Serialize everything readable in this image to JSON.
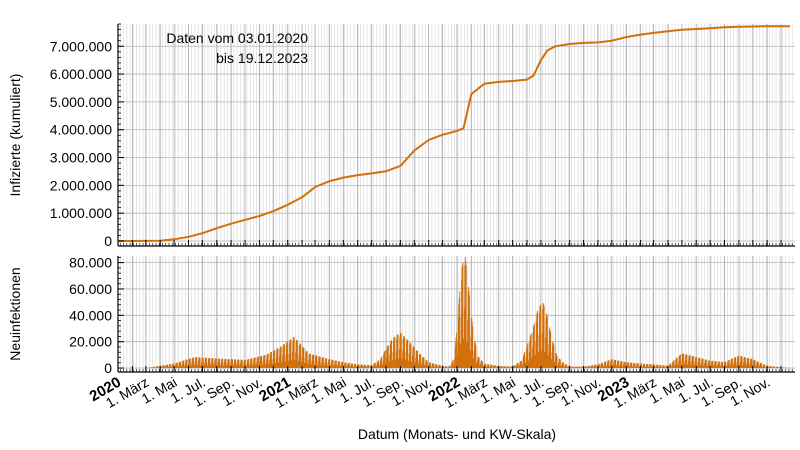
{
  "chart_data": [
    {
      "type": "line",
      "ylabel": "Infizierte (kumuliert)",
      "annotation_lines": [
        "Daten vom 03.01.2020",
        "bis 19.12.2023"
      ],
      "ylim": [
        -180000,
        7800000
      ],
      "yticks": [
        {
          "value": 0,
          "label": "0"
        },
        {
          "value": 1000000,
          "label": "1.000.000"
        },
        {
          "value": 2000000,
          "label": "2.000.000"
        },
        {
          "value": 3000000,
          "label": "3.000.000"
        },
        {
          "value": 4000000,
          "label": "4.000.000"
        },
        {
          "value": 5000000,
          "label": "5.000.000"
        },
        {
          "value": 6000000,
          "label": "6.000.000"
        },
        {
          "value": 7000000,
          "label": "7.000.000"
        }
      ],
      "grid": true,
      "series_color": "#d2700c",
      "x": [
        "2020-01-03",
        "2020-02-01",
        "2020-03-01",
        "2020-04-01",
        "2020-05-01",
        "2020-06-01",
        "2020-07-01",
        "2020-08-01",
        "2020-09-01",
        "2020-10-01",
        "2020-11-01",
        "2020-12-01",
        "2021-01-01",
        "2021-02-01",
        "2021-03-01",
        "2021-04-01",
        "2021-05-01",
        "2021-06-01",
        "2021-07-01",
        "2021-08-01",
        "2021-09-01",
        "2021-10-01",
        "2021-11-01",
        "2021-12-01",
        "2021-12-15",
        "2022-01-01",
        "2022-01-15",
        "2022-02-01",
        "2022-03-01",
        "2022-04-01",
        "2022-05-01",
        "2022-06-01",
        "2022-06-15",
        "2022-07-01",
        "2022-07-15",
        "2022-08-01",
        "2022-09-01",
        "2022-10-01",
        "2022-11-01",
        "2022-12-01",
        "2023-01-01",
        "2023-02-01",
        "2023-03-01",
        "2023-04-01",
        "2023-05-01",
        "2023-06-01",
        "2023-07-01",
        "2023-08-01",
        "2023-09-01",
        "2023-10-01",
        "2023-11-01",
        "2023-12-19"
      ],
      "values": [
        0,
        0,
        3000,
        10000,
        60000,
        150000,
        280000,
        460000,
        620000,
        760000,
        900000,
        1070000,
        1300000,
        1570000,
        1940000,
        2150000,
        2280000,
        2370000,
        2430000,
        2510000,
        2700000,
        3250000,
        3630000,
        3820000,
        3880000,
        3960000,
        4050000,
        5280000,
        5650000,
        5720000,
        5750000,
        5800000,
        5950000,
        6500000,
        6850000,
        7000000,
        7080000,
        7120000,
        7140000,
        7200000,
        7330000,
        7420000,
        7480000,
        7540000,
        7590000,
        7620000,
        7650000,
        7680000,
        7700000,
        7710000,
        7720000,
        7720000
      ]
    },
    {
      "type": "bar",
      "ylabel": "Neuinfektionen",
      "ylim": [
        -3000,
        85000
      ],
      "yticks": [
        {
          "value": 0,
          "label": "0"
        },
        {
          "value": 20000,
          "label": "20.000"
        },
        {
          "value": 40000,
          "label": "40.000"
        },
        {
          "value": 60000,
          "label": "60.000"
        },
        {
          "value": 80000,
          "label": "80.000"
        }
      ],
      "grid": true,
      "series_color": "#d2700c",
      "x": [
        "2020-01-03",
        "2020-03-01",
        "2020-05-01",
        "2020-06-15",
        "2020-08-01",
        "2020-10-01",
        "2020-11-15",
        "2020-12-15",
        "2021-01-01",
        "2021-01-15",
        "2021-02-15",
        "2021-04-01",
        "2021-05-01",
        "2021-06-01",
        "2021-07-01",
        "2021-07-20",
        "2021-08-01",
        "2021-08-15",
        "2021-09-01",
        "2021-09-20",
        "2021-10-15",
        "2021-11-01",
        "2021-12-01",
        "2021-12-15",
        "2021-12-25",
        "2022-01-02",
        "2022-01-10",
        "2022-01-18",
        "2022-01-26",
        "2022-02-05",
        "2022-02-15",
        "2022-03-01",
        "2022-04-01",
        "2022-05-01",
        "2022-05-20",
        "2022-06-01",
        "2022-06-15",
        "2022-06-25",
        "2022-07-05",
        "2022-07-15",
        "2022-07-25",
        "2022-08-05",
        "2022-08-20",
        "2022-09-05",
        "2022-10-01",
        "2022-11-01",
        "2022-12-01",
        "2023-01-01",
        "2023-02-01",
        "2023-03-01",
        "2023-04-01",
        "2023-05-01",
        "2023-06-01",
        "2023-07-01",
        "2023-08-01",
        "2023-09-01",
        "2023-10-01",
        "2023-11-01",
        "2023-12-19"
      ],
      "values": [
        0,
        0,
        3000,
        7500,
        6500,
        5500,
        9000,
        14000,
        18000,
        21000,
        10000,
        6000,
        4000,
        2500,
        2000,
        6000,
        13000,
        20000,
        24000,
        18000,
        9000,
        4000,
        1500,
        1000,
        6000,
        30000,
        65000,
        78000,
        55000,
        25000,
        8000,
        3000,
        1500,
        1000,
        5000,
        15000,
        28000,
        40000,
        45000,
        35000,
        20000,
        8000,
        3000,
        1000,
        1000,
        2500,
        6000,
        4000,
        3000,
        2500,
        1500,
        10000,
        7500,
        5000,
        4000,
        8500,
        6000,
        1500,
        0
      ]
    }
  ],
  "shared_x_axis": {
    "xlabel": "Datum (Monats- und KW-Skala)",
    "tick_labels": [
      {
        "date": "2020-01-01",
        "label": "2020",
        "bold": true
      },
      {
        "date": "2020-03-01",
        "label": "1. März",
        "bold": false
      },
      {
        "date": "2020-05-01",
        "label": "1. Mai",
        "bold": false
      },
      {
        "date": "2020-07-01",
        "label": "1. Jul.",
        "bold": false
      },
      {
        "date": "2020-09-01",
        "label": "1. Sep.",
        "bold": false
      },
      {
        "date": "2020-11-01",
        "label": "1. Nov.",
        "bold": false
      },
      {
        "date": "2021-01-01",
        "label": "2021",
        "bold": true
      },
      {
        "date": "2021-03-01",
        "label": "1. März",
        "bold": false
      },
      {
        "date": "2021-05-01",
        "label": "1. Mai",
        "bold": false
      },
      {
        "date": "2021-07-01",
        "label": "1. Jul.",
        "bold": false
      },
      {
        "date": "2021-09-01",
        "label": "1. Sep.",
        "bold": false
      },
      {
        "date": "2021-11-01",
        "label": "1. Nov.",
        "bold": false
      },
      {
        "date": "2022-01-01",
        "label": "2022",
        "bold": true
      },
      {
        "date": "2022-03-01",
        "label": "1. März",
        "bold": false
      },
      {
        "date": "2022-05-01",
        "label": "1. Mai",
        "bold": false
      },
      {
        "date": "2022-07-01",
        "label": "1. Jul.",
        "bold": false
      },
      {
        "date": "2022-09-01",
        "label": "1. Sep.",
        "bold": false
      },
      {
        "date": "2022-11-01",
        "label": "1. Nov.",
        "bold": false
      },
      {
        "date": "2023-01-01",
        "label": "2023",
        "bold": true
      },
      {
        "date": "2023-03-01",
        "label": "1. März",
        "bold": false
      },
      {
        "date": "2023-05-01",
        "label": "1. Mai",
        "bold": false
      },
      {
        "date": "2023-07-01",
        "label": "1. Jul.",
        "bold": false
      },
      {
        "date": "2023-09-01",
        "label": "1. Sep.",
        "bold": false
      },
      {
        "date": "2023-11-01",
        "label": "1. Nov.",
        "bold": false
      }
    ],
    "range": [
      "2020-01-01",
      "2023-12-31"
    ]
  }
}
